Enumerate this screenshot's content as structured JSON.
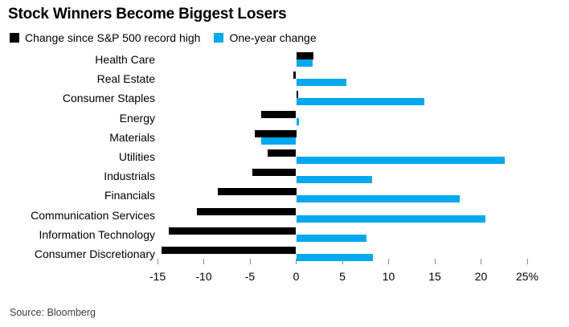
{
  "title": "Stock Winners Become Biggest Losers",
  "legend": [
    {
      "label": "Change since S&P 500 record high",
      "color": "#000000"
    },
    {
      "label": "One-year change",
      "color": "#00a8ef"
    }
  ],
  "source": "Source: Bloomberg",
  "colors": {
    "series_record_high": "#000000",
    "series_one_year": "#00a8ef",
    "tick": "#8a8a8a",
    "background": "#ffffff"
  },
  "chart_data": {
    "type": "bar",
    "orientation": "horizontal",
    "title": "Stock Winners Become Biggest Losers",
    "categories": [
      "Health Care",
      "Real Estate",
      "Consumer Staples",
      "Energy",
      "Materials",
      "Utilities",
      "Industrials",
      "Financials",
      "Communication Services",
      "Information Technology",
      "Consumer Discretionary"
    ],
    "series": [
      {
        "name": "Change since S&P 500 record high",
        "color": "#000000",
        "values": [
          1.9,
          -0.3,
          0.2,
          -3.8,
          -4.5,
          -3.1,
          -4.7,
          -8.5,
          -10.7,
          -13.8,
          -14.6
        ]
      },
      {
        "name": "One-year change",
        "color": "#00a8ef",
        "values": [
          1.8,
          5.4,
          13.9,
          0.3,
          -3.8,
          22.6,
          8.2,
          17.7,
          20.5,
          7.6,
          8.3
        ]
      }
    ],
    "xlabel": "",
    "ylabel": "",
    "unit": "%",
    "xlim": [
      -15,
      25
    ],
    "x_ticks": [
      -15,
      -10,
      -5,
      0,
      5,
      10,
      15,
      20,
      25
    ],
    "x_tick_labels": [
      "-15",
      "-10",
      "-5",
      "0",
      "5",
      "10",
      "15",
      "20",
      "25%"
    ],
    "grid": false,
    "legend_position": "top-left"
  }
}
